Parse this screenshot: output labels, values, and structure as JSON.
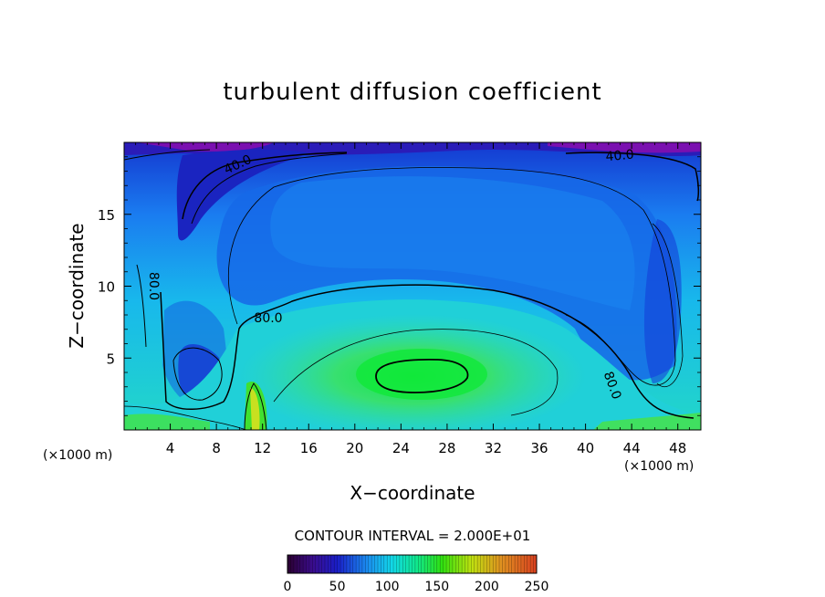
{
  "chart_data": {
    "type": "heatmap",
    "title": "turbulent diffusion coefficient",
    "xlabel": "X−coordinate",
    "ylabel": "Z−coordinate",
    "x_unit": "(×1000 m)",
    "y_unit": "(×1000 m)",
    "xlim": [
      0,
      50
    ],
    "ylim": [
      0,
      20
    ],
    "xticks": [
      4,
      8,
      12,
      16,
      20,
      24,
      28,
      32,
      36,
      40,
      44,
      48
    ],
    "yticks": [
      5,
      10,
      15
    ],
    "contour_interval_text": "CONTOUR INTERVAL = 2.000E+01",
    "contour_interval": 20,
    "contour_labels": [
      {
        "text": "40.0",
        "x": 10,
        "z": 18.2
      },
      {
        "text": "40.0",
        "x": 43,
        "z": 18.8
      },
      {
        "text": "80.0",
        "x": 2.2,
        "z": 10
      },
      {
        "text": "80.0",
        "x": 12.5,
        "z": 7.5
      },
      {
        "text": "80.0",
        "x": 42,
        "z": 3
      }
    ],
    "colorbar": {
      "min": 0,
      "max": 250,
      "ticks": [
        0,
        50,
        100,
        150,
        200,
        250
      ],
      "colors": [
        "#2a0030",
        "#3a0c8c",
        "#1a1ec8",
        "#1a8cf0",
        "#12d8e8",
        "#10e88c",
        "#30e010",
        "#c0e010",
        "#e09020",
        "#d84020"
      ]
    },
    "field_description_values": {
      "background_level": 100,
      "core_maximum": 150,
      "core_center": {
        "x": 26,
        "z": 4
      },
      "top_minimum": 20
    }
  }
}
